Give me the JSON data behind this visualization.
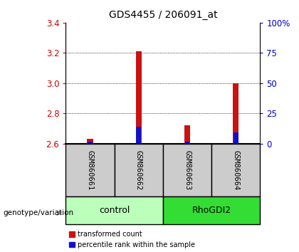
{
  "title": "GDS4455 / 206091_at",
  "samples": [
    "GSM860661",
    "GSM860662",
    "GSM860663",
    "GSM860664"
  ],
  "groups": [
    {
      "name": "control",
      "color": "#bbffbb",
      "start": 0,
      "end": 2
    },
    {
      "name": "RhoGDI2",
      "color": "#33dd33",
      "start": 2,
      "end": 4
    }
  ],
  "transformed_counts": [
    2.63,
    3.21,
    2.72,
    3.0
  ],
  "percentile_ranks": [
    1.5,
    14.0,
    1.5,
    9.0
  ],
  "y_min": 2.6,
  "y_max": 3.4,
  "y_ticks": [
    2.6,
    2.8,
    3.0,
    3.2,
    3.4
  ],
  "right_y_ticks": [
    0,
    25,
    50,
    75,
    100
  ],
  "bar_color_red": "#cc1111",
  "bar_color_blue": "#1111cc",
  "title_fontsize": 10,
  "axis_color_left": "#cc0000",
  "axis_color_right": "#0000cc",
  "sample_label_bg": "#cccccc",
  "genotype_label": "genotype/variation"
}
